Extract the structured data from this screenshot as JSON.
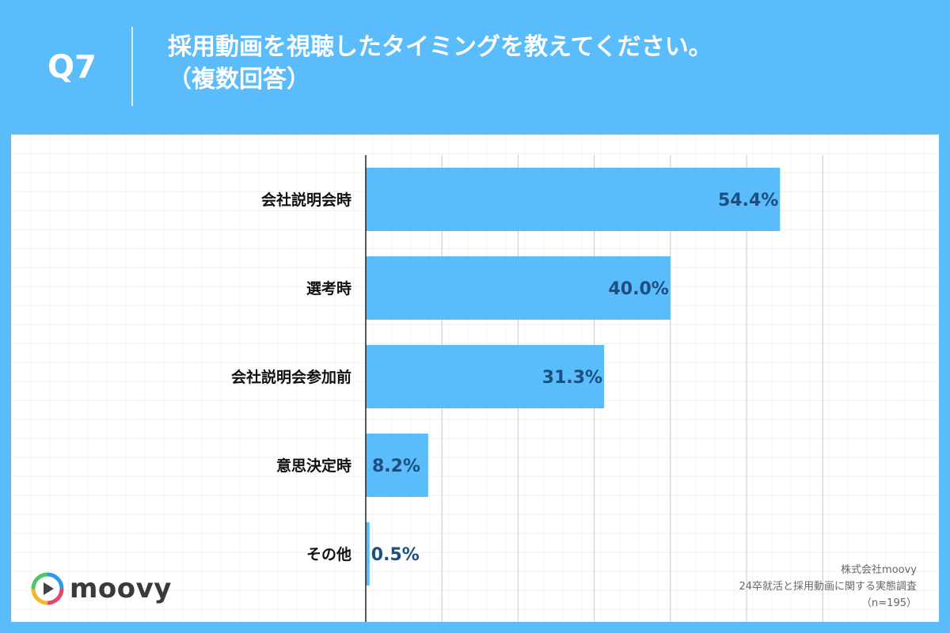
{
  "header": {
    "question": "Q7",
    "title_line1": "採用動画を視聴したタイミングを教えてください。",
    "title_line2": "（複数回答）"
  },
  "chart_data": {
    "type": "bar",
    "orientation": "horizontal",
    "categories": [
      "会社説明会時",
      "選考時",
      "会社説明会参加前",
      "意思決定時",
      "その他"
    ],
    "values": [
      54.4,
      40.0,
      31.3,
      8.2,
      0.5
    ],
    "value_labels": [
      "54.4%",
      "40.0%",
      "31.3%",
      "8.2%",
      "0.5%"
    ],
    "unit": "%",
    "xlim": [
      0,
      60
    ],
    "grid": true,
    "bar_color": "#5bbcfb",
    "label_color": "#1c4f80"
  },
  "footer": {
    "logo_text": "moovy",
    "source_company": "株式会社moovy",
    "source_survey": "24卒就活と採用動画に関する実態調査",
    "sample_size": "（n=195）"
  },
  "colors": {
    "background": "#5bbcfb",
    "panel": "#ffffff"
  }
}
